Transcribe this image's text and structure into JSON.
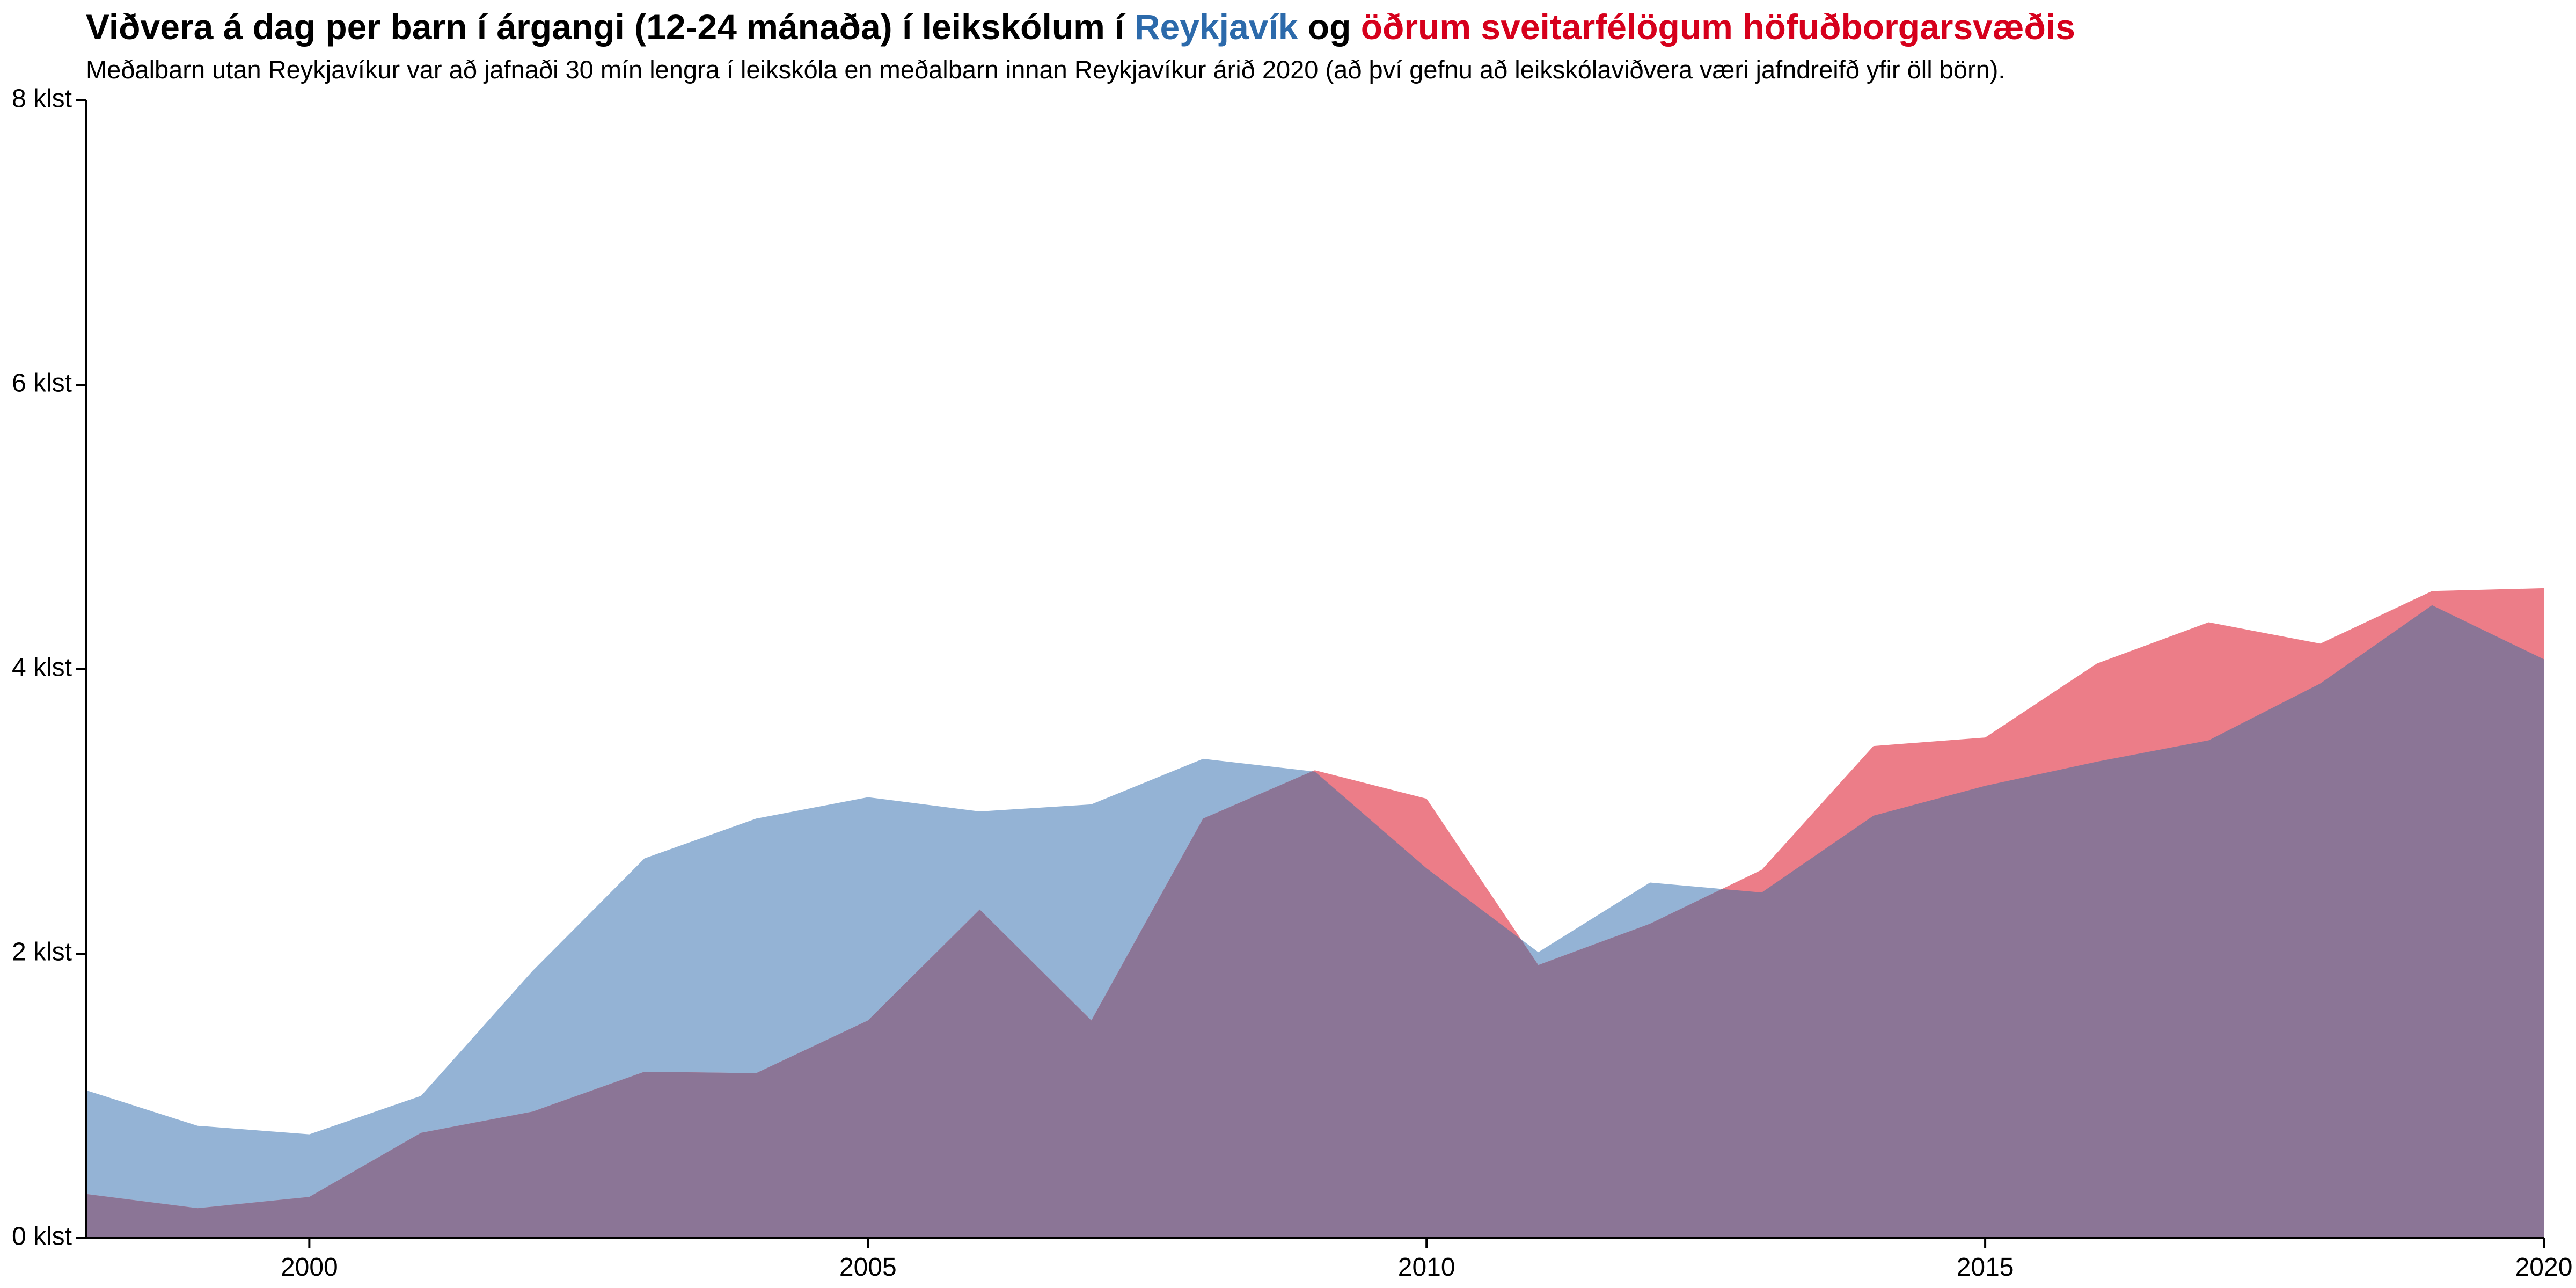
{
  "title": {
    "prefix": "Viðvera á dag per barn í árgangi (12-24 mánaða) í leikskólum í ",
    "reykjavik": "Reykjavík",
    "connector": " og ",
    "others": "öðrum sveitarfélögum höfuðborgarsvæðis"
  },
  "subtitle": "Meðalbarn utan Reykjavíkur var að jafnaði 30 mín lengra í leikskóla en meðalbarn innan Reykjavíkur árið 2020 (að því gefnu að leikskólaviðvera væri jafndreifð yfir öll börn).",
  "colors": {
    "reykjavik": "#2c6aab",
    "others": "#d6001c",
    "reykjavik_fill": "#94b3d5",
    "others_fill": "#ec7d88",
    "overlap_fill": "#8b7596"
  },
  "chart_data": {
    "type": "area",
    "x": [
      1998,
      1999,
      2000,
      2001,
      2002,
      2003,
      2004,
      2005,
      2006,
      2007,
      2008,
      2009,
      2010,
      2011,
      2012,
      2013,
      2014,
      2015,
      2016,
      2017,
      2018,
      2019,
      2020
    ],
    "series": [
      {
        "name": "Reykjavík",
        "values": [
          1.04,
          0.79,
          0.73,
          1.0,
          1.88,
          2.67,
          2.95,
          3.1,
          3.0,
          3.05,
          3.37,
          3.28,
          2.6,
          2.01,
          2.5,
          2.43,
          2.97,
          3.18,
          3.35,
          3.5,
          3.9,
          4.45,
          4.07
        ]
      },
      {
        "name": "öðrum sveitarfélögum höfuðborgarsvæðis",
        "values": [
          0.31,
          0.21,
          0.29,
          0.74,
          0.89,
          1.17,
          1.16,
          1.53,
          2.31,
          1.53,
          2.95,
          3.29,
          3.09,
          1.92,
          2.21,
          2.59,
          3.46,
          3.52,
          4.04,
          4.33,
          4.18,
          4.55,
          4.57
        ]
      }
    ],
    "ylim": [
      0,
      8
    ],
    "xlim": [
      1998,
      2020
    ],
    "y_ticks": [
      0,
      2,
      4,
      6,
      8
    ],
    "y_tick_labels": [
      "0 klst",
      "2 klst",
      "4 klst",
      "6 klst",
      "8 klst"
    ],
    "x_ticks": [
      2000,
      2005,
      2010,
      2015,
      2020
    ],
    "x_tick_labels": [
      "2000",
      "2005",
      "2010",
      "2015",
      "2020"
    ],
    "grid": false,
    "legend": "title"
  }
}
